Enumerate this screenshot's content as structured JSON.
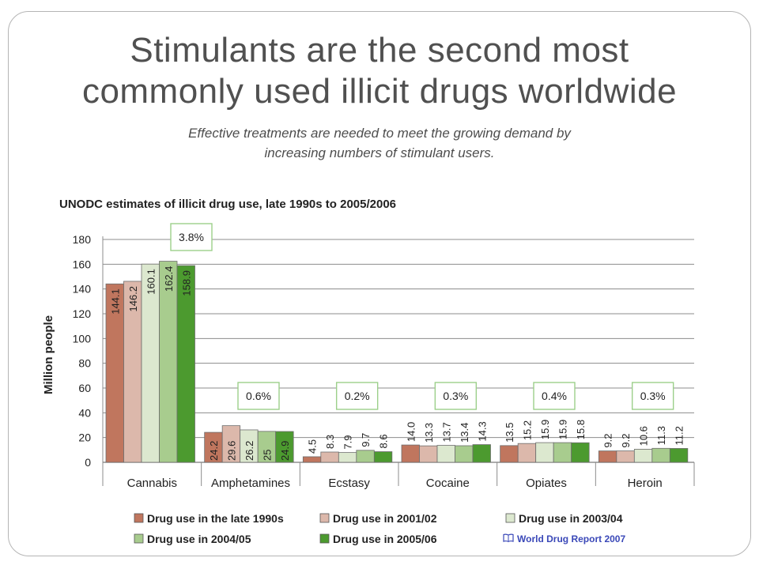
{
  "slide": {
    "title": "Stimulants are the second most\ncommonly used illicit drugs worldwide",
    "subtitle": "Effective treatments are needed to meet the growing demand by\nincreasing numbers of stimulant users.",
    "source_icon": "book-icon",
    "source": "World Drug Report 2007"
  },
  "chart_data": {
    "type": "bar",
    "title": "UNODC estimates of illicit drug use, late 1990s to 2005/2006",
    "ylabel": "Million people",
    "xlabel": "",
    "ylim": [
      0,
      180
    ],
    "yticks": [
      0,
      20,
      40,
      60,
      80,
      100,
      120,
      140,
      160,
      180
    ],
    "grid": true,
    "legend_position": "bottom",
    "categories": [
      "Cannabis",
      "Amphetamines",
      "Ecstasy",
      "Cocaine",
      "Opiates",
      "Heroin"
    ],
    "series": [
      {
        "name": "Drug use in the late 1990s",
        "color": "#c0765e",
        "values": [
          144.1,
          24.2,
          4.5,
          14.0,
          13.5,
          9.2
        ],
        "labels": [
          "144.1",
          "24.2",
          "4.5",
          "14.0",
          "13.5",
          "9.2"
        ]
      },
      {
        "name": "Drug use in 2001/02",
        "color": "#dcb8ab",
        "values": [
          146.2,
          29.6,
          8.3,
          13.3,
          15.2,
          9.2
        ],
        "labels": [
          "146.2",
          "29.6",
          "8.3",
          "13.3",
          "15.2",
          "9.2"
        ]
      },
      {
        "name": "Drug use in 2003/04",
        "color": "#dce8cf",
        "values": [
          160.1,
          26.2,
          7.9,
          13.7,
          15.9,
          10.6
        ],
        "labels": [
          "160.1",
          "26.2",
          "7.9",
          "13.7",
          "15.9",
          "10.6"
        ]
      },
      {
        "name": "Drug use in 2004/05",
        "color": "#a8cc8e",
        "values": [
          162.4,
          25,
          9.7,
          13.4,
          15.9,
          11.3
        ],
        "labels": [
          "162.4",
          "25",
          "9.7",
          "13.4",
          "15.9",
          "11.3"
        ]
      },
      {
        "name": "Drug use in 2005/06",
        "color": "#4c9a2f",
        "values": [
          158.9,
          24.9,
          8.6,
          14.3,
          15.8,
          11.2
        ],
        "labels": [
          "158.9",
          "24.9",
          "8.6",
          "14.3",
          "15.8",
          "11.2"
        ]
      }
    ],
    "annotations": [
      {
        "category": "Cannabis",
        "text": "3.8%"
      },
      {
        "category": "Amphetamines",
        "text": "0.6%"
      },
      {
        "category": "Ecstasy",
        "text": "0.2%"
      },
      {
        "category": "Cocaine",
        "text": "0.3%"
      },
      {
        "category": "Opiates",
        "text": "0.4%"
      },
      {
        "category": "Heroin",
        "text": "0.3%"
      }
    ]
  }
}
